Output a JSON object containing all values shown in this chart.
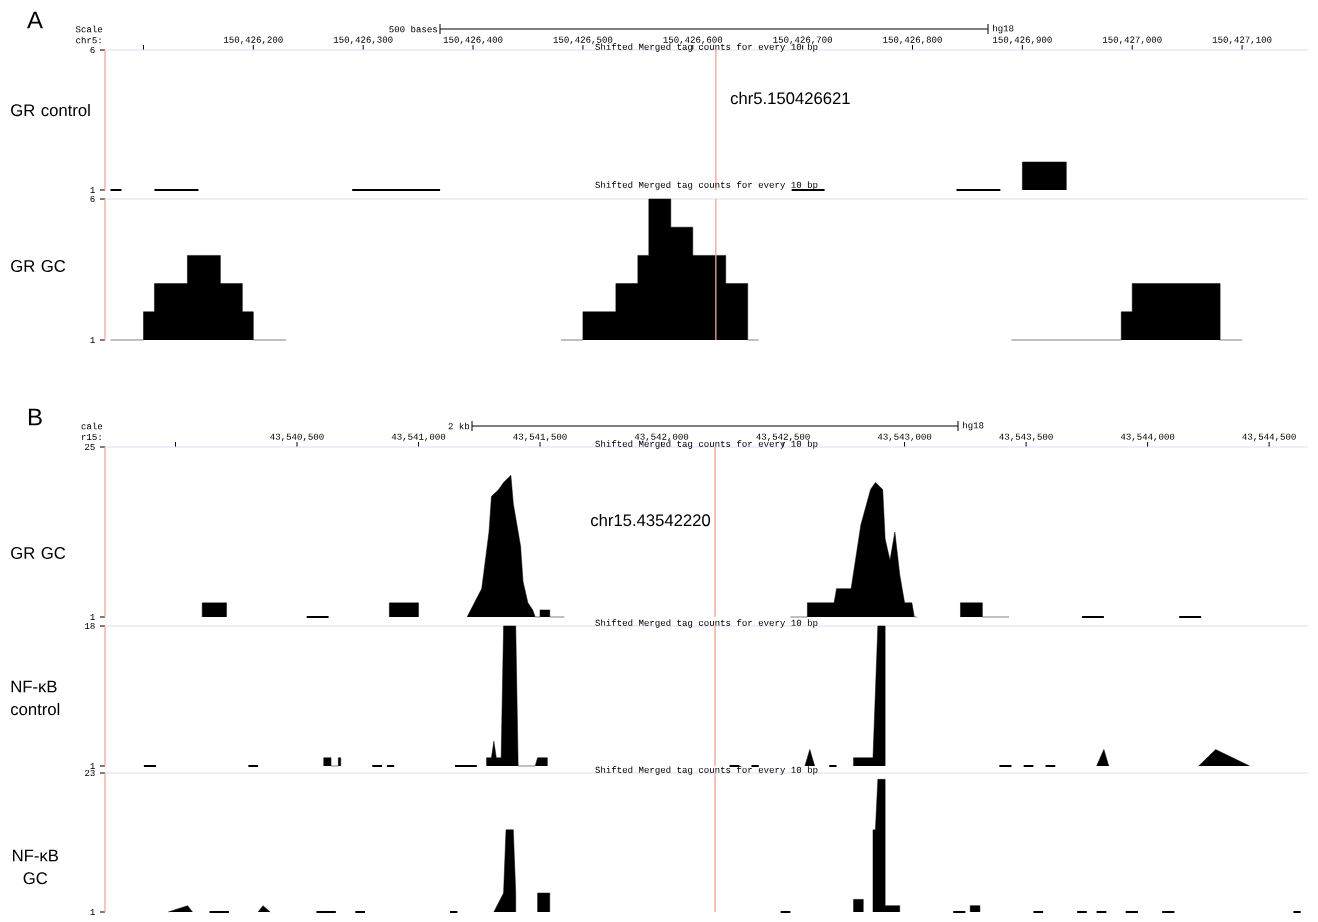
{
  "chart_data": [
    {
      "type": "area",
      "title": "Shifted Merged tag counts for every 10 bp",
      "ylabel": "GR control",
      "xlabel": "chr5:",
      "annotations": [
        "A",
        "Scale",
        "500 bases",
        "hg18"
      ],
      "ref_lines": [
        {
          "axis": "x",
          "value": 150426621,
          "label": "chr5.150426621",
          "color": "#f4a090"
        }
      ],
      "xlim": [
        150426065,
        150427160
      ],
      "ylim": [
        1,
        6
      ],
      "yticks": [
        1,
        6
      ],
      "xticks": [
        {
          "value": 150426100,
          "label": null
        },
        {
          "value": 150426200,
          "label": "150,426,200"
        },
        {
          "value": 150426300,
          "label": "150,426,300"
        },
        {
          "value": 150426400,
          "label": "150,426,400"
        },
        {
          "value": 150426500,
          "label": "150,426,500"
        },
        {
          "value": 150426600,
          "label": "150,426,600"
        },
        {
          "value": 150426700,
          "label": "150,426,700"
        },
        {
          "value": 150426800,
          "label": "150,426,800"
        },
        {
          "value": 150426900,
          "label": "150,426,900"
        },
        {
          "value": 150427000,
          "label": "150,427,000"
        },
        {
          "value": 150427100,
          "label": "150,427,100"
        }
      ],
      "series": [
        {
          "type": "area",
          "color": "#000000",
          "x": [
            150426900,
            150426900,
            150426940,
            150426940
          ],
          "values": [
            1,
            2,
            2,
            1
          ]
        },
        {
          "type": "line",
          "color": "#000000",
          "x": [
            150426070,
            150426080,
            null,
            150426110,
            150426150,
            null,
            150426290,
            150426370,
            null,
            150426690,
            150426720,
            null,
            150426840,
            150426880
          ],
          "values": [
            1,
            1,
            null,
            1,
            1,
            null,
            1,
            1,
            null,
            1,
            1,
            null,
            1,
            1
          ]
        }
      ]
    },
    {
      "type": "area",
      "title": "Shifted Merged tag counts for every 10 bp",
      "ylabel": "GR GC",
      "tick_labels": "y",
      "ref_lines": [
        {
          "axis": "x",
          "value": 150426621,
          "color": "#f4a090"
        }
      ],
      "xlim": [
        150426065,
        150427160
      ],
      "ylim": [
        1,
        6
      ],
      "yticks": [
        1,
        6
      ],
      "series": [
        {
          "type": "area",
          "color": "#000000",
          "x": [
            150426070,
            150426100,
            150426100,
            150426110,
            150426110,
            150426140,
            150426140,
            150426170,
            150426170,
            150426190,
            150426190,
            150426200,
            150426200,
            150426230,
            null,
            150426480,
            150426500,
            150426500,
            150426530,
            150426530,
            150426550,
            150426550,
            150426560,
            150426560,
            150426580,
            150426580,
            150426600,
            150426600,
            150426630,
            150426630,
            150426650,
            150426650,
            150426660,
            null,
            150426890,
            150426990,
            150426990,
            150427000,
            150427000,
            150427080,
            150427080,
            150427100
          ],
          "values": [
            1,
            1,
            2,
            2,
            3,
            3,
            4,
            4,
            3,
            3,
            2,
            2,
            1,
            1,
            null,
            1,
            1,
            2,
            2,
            3,
            3,
            4,
            4,
            6,
            6,
            5,
            5,
            4,
            4,
            3,
            3,
            1,
            1,
            null,
            1,
            1,
            2,
            2,
            3,
            3,
            1,
            1
          ]
        }
      ]
    },
    {
      "type": "area",
      "title": "Shifted Merged tag counts for every 10 bp",
      "ylabel": "GR GC",
      "xlabel": "r15:",
      "annotations": [
        "B",
        "cale",
        "2 kb",
        "hg18"
      ],
      "ref_lines": [
        {
          "axis": "x",
          "value": 43542220,
          "label": "chr15.43542220",
          "color": "#f4a090"
        }
      ],
      "xlim": [
        43539710,
        43544660
      ],
      "ylim": [
        1,
        25
      ],
      "yticks": [
        1,
        25
      ],
      "xticks": [
        {
          "value": 43540000,
          "label": null
        },
        {
          "value": 43540500,
          "label": "43,540,500"
        },
        {
          "value": 43541000,
          "label": "43,541,000"
        },
        {
          "value": 43541500,
          "label": "43,541,500"
        },
        {
          "value": 43542000,
          "label": "43,542,000"
        },
        {
          "value": 43542500,
          "label": "43,542,500"
        },
        {
          "value": 43543000,
          "label": "43,543,000"
        },
        {
          "value": 43543500,
          "label": "43,543,500"
        },
        {
          "value": 43544000,
          "label": "43,544,000"
        },
        {
          "value": 43544500,
          "label": "43,544,500"
        }
      ],
      "series": [
        {
          "type": "area",
          "color": "#000000",
          "x": [
            43540110,
            43540110,
            43540210,
            43540210,
            null,
            43540880,
            43540880,
            43541000,
            43541000,
            null,
            43541200,
            43541230,
            43541260,
            43541290,
            43541300,
            43541330,
            43541350,
            43541380,
            43541390,
            43541420,
            43541430,
            43541450,
            43541470,
            43541480,
            43541500,
            43541500,
            43541540,
            43541540,
            43541600,
            null,
            43542530,
            43542600,
            43542600,
            43542710,
            43542720,
            43542780,
            43542820,
            43542860,
            43542880,
            43542910,
            43542920,
            43542940,
            43542960,
            43542980,
            43543000,
            43543030,
            43543040,
            43543050,
            null,
            43543230,
            43543230,
            43543320,
            43543320,
            43543430
          ],
          "values": [
            1,
            3,
            3,
            1,
            null,
            1,
            3,
            3,
            1,
            null,
            1,
            3,
            5,
            13,
            18,
            19,
            20,
            21,
            17,
            11,
            6,
            3,
            2,
            1,
            1,
            2,
            2,
            1,
            1,
            null,
            1,
            1,
            3,
            3,
            5,
            5,
            14,
            19,
            20,
            19,
            12,
            9,
            13,
            7,
            3,
            3,
            1,
            1,
            null,
            1,
            3,
            3,
            1,
            1
          ]
        },
        {
          "type": "line",
          "color": "#000000",
          "x": [
            43540540,
            43540630,
            null,
            43543730,
            43543820,
            null,
            43544130,
            43544220
          ],
          "values": [
            1,
            1,
            null,
            1,
            1,
            null,
            1,
            1
          ]
        }
      ]
    },
    {
      "type": "area",
      "title": "Shifted Merged tag counts for every 10 bp",
      "ylabel": "NF-κB control",
      "tick_labels": "y",
      "ref_lines": [
        {
          "axis": "x",
          "value": 43542220,
          "color": "#f4a090"
        }
      ],
      "xlim": [
        43539710,
        43544660
      ],
      "ylim": [
        1,
        18
      ],
      "yticks": [
        1,
        18
      ],
      "series": [
        {
          "type": "area",
          "color": "#000000",
          "x": [
            43540610,
            43540610,
            43540640,
            43540640,
            43540670,
            43540670,
            43540680,
            43540680,
            null,
            43541280,
            43541280,
            43541300,
            43541310,
            43541320,
            43541340,
            43541350,
            43541400,
            43541410,
            43541480,
            43541490,
            43541530,
            43541530,
            null,
            43542590,
            43542610,
            43542630,
            null,
            43542790,
            43542790,
            43542870,
            43542880,
            43542890,
            43542920,
            43542920,
            null,
            43543790,
            43543820,
            43543840,
            null,
            43544210,
            43544280,
            43544420
          ],
          "values": [
            1,
            2,
            2,
            1,
            1,
            2,
            2,
            1,
            null,
            1,
            2,
            2,
            4,
            2,
            2,
            18,
            18,
            1,
            1,
            2,
            2,
            1,
            null,
            1,
            3,
            1,
            null,
            1,
            2,
            2,
            10,
            18,
            18,
            1,
            null,
            1,
            3,
            1,
            null,
            1,
            3,
            1
          ]
        },
        {
          "type": "line",
          "color": "#000000",
          "x": [
            43539870,
            43539920,
            null,
            43540300,
            43540340,
            null,
            43540810,
            43540850,
            null,
            43540870,
            43540900,
            null,
            43541150,
            43541240,
            null,
            43542280,
            43542320,
            null,
            43542370,
            43542400,
            null,
            43542690,
            43542720,
            null,
            43543390,
            43543440,
            null,
            43543490,
            43543530,
            null,
            43543580,
            43543620
          ],
          "values": [
            1,
            1,
            null,
            1,
            1,
            null,
            1,
            1,
            null,
            1,
            1,
            null,
            1,
            1,
            null,
            1,
            1,
            null,
            1,
            1,
            null,
            1,
            1,
            null,
            1,
            1,
            null,
            1,
            1,
            null,
            1,
            1
          ]
        }
      ]
    },
    {
      "type": "area",
      "title": "Shifted Merged tag counts for every 10 bp",
      "ylabel": "NF-κB GC",
      "tick_labels": "y",
      "ref_lines": [
        {
          "axis": "x",
          "value": 43542220,
          "color": "#f4a090"
        }
      ],
      "xlim": [
        43539710,
        43544660
      ],
      "ylim": [
        1,
        23
      ],
      "yticks": [
        1,
        23
      ],
      "series": [
        {
          "type": "area",
          "color": "#000000",
          "x": [
            43539970,
            43540050,
            43540070,
            null,
            43540340,
            43540360,
            43540390,
            null,
            43541310,
            43541350,
            43541360,
            43541390,
            43541400,
            43541400,
            null,
            43541490,
            43541490,
            43541540,
            43541540,
            null,
            43542790,
            43542790,
            43542830,
            43542830,
            null,
            43542870,
            43542870,
            43542880,
            43542890,
            43542920,
            43542920,
            43542980,
            43542980,
            null,
            43543270,
            43543270,
            43543310,
            43543310
          ],
          "values": [
            1,
            2,
            1,
            null,
            1,
            2,
            1,
            null,
            1,
            4,
            14,
            14,
            4,
            1,
            null,
            1,
            4,
            4,
            1,
            null,
            1,
            3,
            3,
            1,
            null,
            1,
            14,
            14,
            22,
            22,
            2,
            2,
            1,
            null,
            1,
            2,
            2,
            1
          ]
        },
        {
          "type": "line",
          "color": "#000000",
          "x": [
            43540140,
            43540220,
            null,
            43540580,
            43540660,
            null,
            43540740,
            43540780,
            null,
            43541130,
            43541160,
            null,
            43542490,
            43542530,
            null,
            43543200,
            43543250,
            null,
            43543530,
            43543570,
            null,
            43543710,
            43543750,
            null,
            43543790,
            43543830,
            null,
            43543910,
            43543960,
            null,
            43544060,
            43544110,
            null,
            43544600,
            43544630
          ],
          "values": [
            1,
            1,
            null,
            1,
            1,
            null,
            1,
            1,
            null,
            1,
            1,
            null,
            1,
            1,
            null,
            1,
            1,
            null,
            1,
            1,
            null,
            1,
            1,
            null,
            1,
            1,
            null,
            1,
            1,
            null,
            1,
            1,
            null,
            1,
            1
          ]
        }
      ]
    }
  ]
}
